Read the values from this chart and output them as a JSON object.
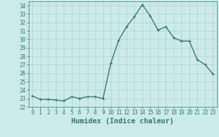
{
  "x": [
    0,
    1,
    2,
    3,
    4,
    5,
    6,
    7,
    8,
    9,
    10,
    11,
    12,
    13,
    14,
    15,
    16,
    17,
    18,
    19,
    20,
    21,
    22,
    23
  ],
  "y": [
    23.3,
    22.9,
    22.9,
    22.8,
    22.7,
    23.2,
    23.0,
    23.2,
    23.2,
    23.0,
    27.2,
    29.9,
    31.5,
    32.7,
    34.1,
    32.8,
    31.1,
    31.5,
    30.2,
    29.8,
    29.8,
    27.6,
    27.0,
    25.9
  ],
  "line_color": "#2a7a6e",
  "marker": "+",
  "marker_size": 3,
  "bg_color": "#cdeaea",
  "grid_color": "#aacfcf",
  "xlabel": "Humidex (Indice chaleur)",
  "xlim": [
    -0.5,
    23.5
  ],
  "ylim": [
    22,
    34.5
  ],
  "yticks": [
    22,
    23,
    24,
    25,
    26,
    27,
    28,
    29,
    30,
    31,
    32,
    33,
    34
  ],
  "xticks": [
    0,
    1,
    2,
    3,
    4,
    5,
    6,
    7,
    8,
    9,
    10,
    11,
    12,
    13,
    14,
    15,
    16,
    17,
    18,
    19,
    20,
    21,
    22,
    23
  ],
  "tick_color": "#2a7a6e",
  "tick_labelsize": 5.5,
  "xlabel_fontsize": 7.5,
  "linewidth": 1.0
}
